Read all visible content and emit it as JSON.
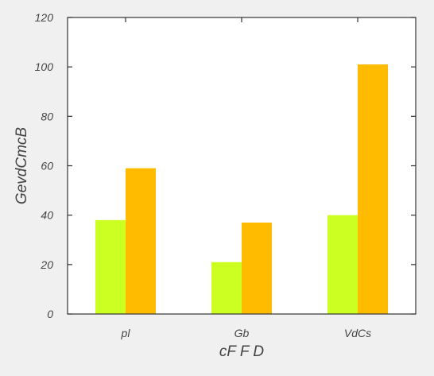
{
  "chart_data": {
    "type": "bar",
    "title": "",
    "xlabel": "cF F D",
    "ylabel": "GevdCmcB",
    "categories": [
      "pl",
      "Gb",
      "VdCs"
    ],
    "series": [
      {
        "color": "#ccff22",
        "values": [
          38,
          21,
          40
        ]
      },
      {
        "color": "#ffbb00",
        "values": [
          59,
          37,
          101
        ]
      }
    ],
    "ylim": [
      0,
      120
    ],
    "yticks": [
      0,
      20,
      40,
      60,
      80,
      100,
      120
    ],
    "grid": false,
    "legend": "none",
    "colors": {
      "background": "#f0f0f0",
      "plot_background": "#ffffff",
      "axis": "#333333",
      "text": "#444444"
    }
  }
}
